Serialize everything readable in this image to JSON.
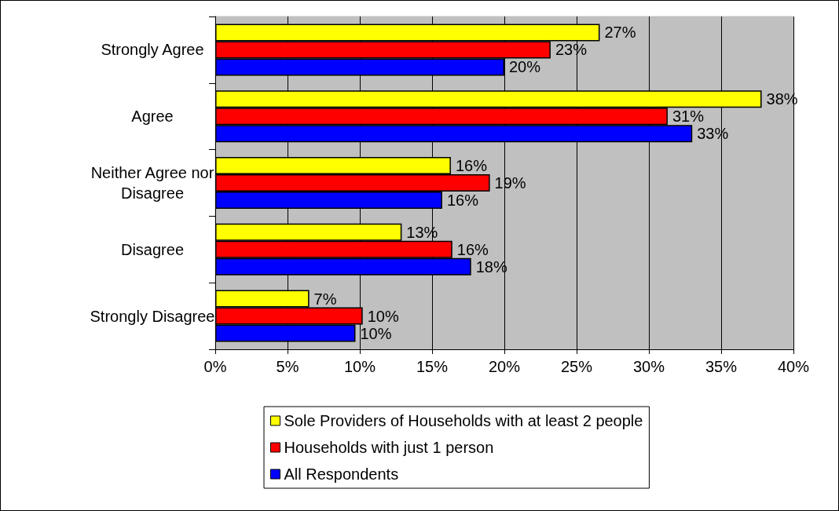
{
  "chart_data": {
    "type": "bar",
    "orientation": "horizontal",
    "categories": [
      "Strongly Agree",
      "Agree",
      "Neither Agree nor\nDisagree",
      "Disagree",
      "Strongly Disagree"
    ],
    "series": [
      {
        "name": "Sole Providers of Households with at least 2 people",
        "color": "#ffff00",
        "values": [
          26.6,
          37.8,
          16.3,
          12.9,
          6.5
        ],
        "value_labels": [
          "27%",
          "38%",
          "16%",
          "13%",
          "7%"
        ]
      },
      {
        "name": "Households with just 1 person",
        "color": "#ff0000",
        "values": [
          23.2,
          31.3,
          19.0,
          16.4,
          10.2
        ],
        "value_labels": [
          "23%",
          "31%",
          "19%",
          "16%",
          "10%"
        ]
      },
      {
        "name": "All Respondents",
        "color": "#0000ff",
        "values": [
          20.0,
          33.0,
          15.7,
          17.7,
          9.7
        ],
        "value_labels": [
          "20%",
          "33%",
          "16%",
          "18%",
          "10%"
        ]
      }
    ],
    "xlim": [
      0,
      40
    ],
    "xticks": [
      {
        "value": 0,
        "label": "0%"
      },
      {
        "value": 5,
        "label": "5%"
      },
      {
        "value": 10,
        "label": "10%"
      },
      {
        "value": 15,
        "label": "15%"
      },
      {
        "value": 20,
        "label": "20%"
      },
      {
        "value": 25,
        "label": "25%"
      },
      {
        "value": 30,
        "label": "30%"
      },
      {
        "value": 35,
        "label": "35%"
      },
      {
        "value": 40,
        "label": "40%"
      }
    ],
    "grid": "x",
    "legend": "bottom"
  }
}
